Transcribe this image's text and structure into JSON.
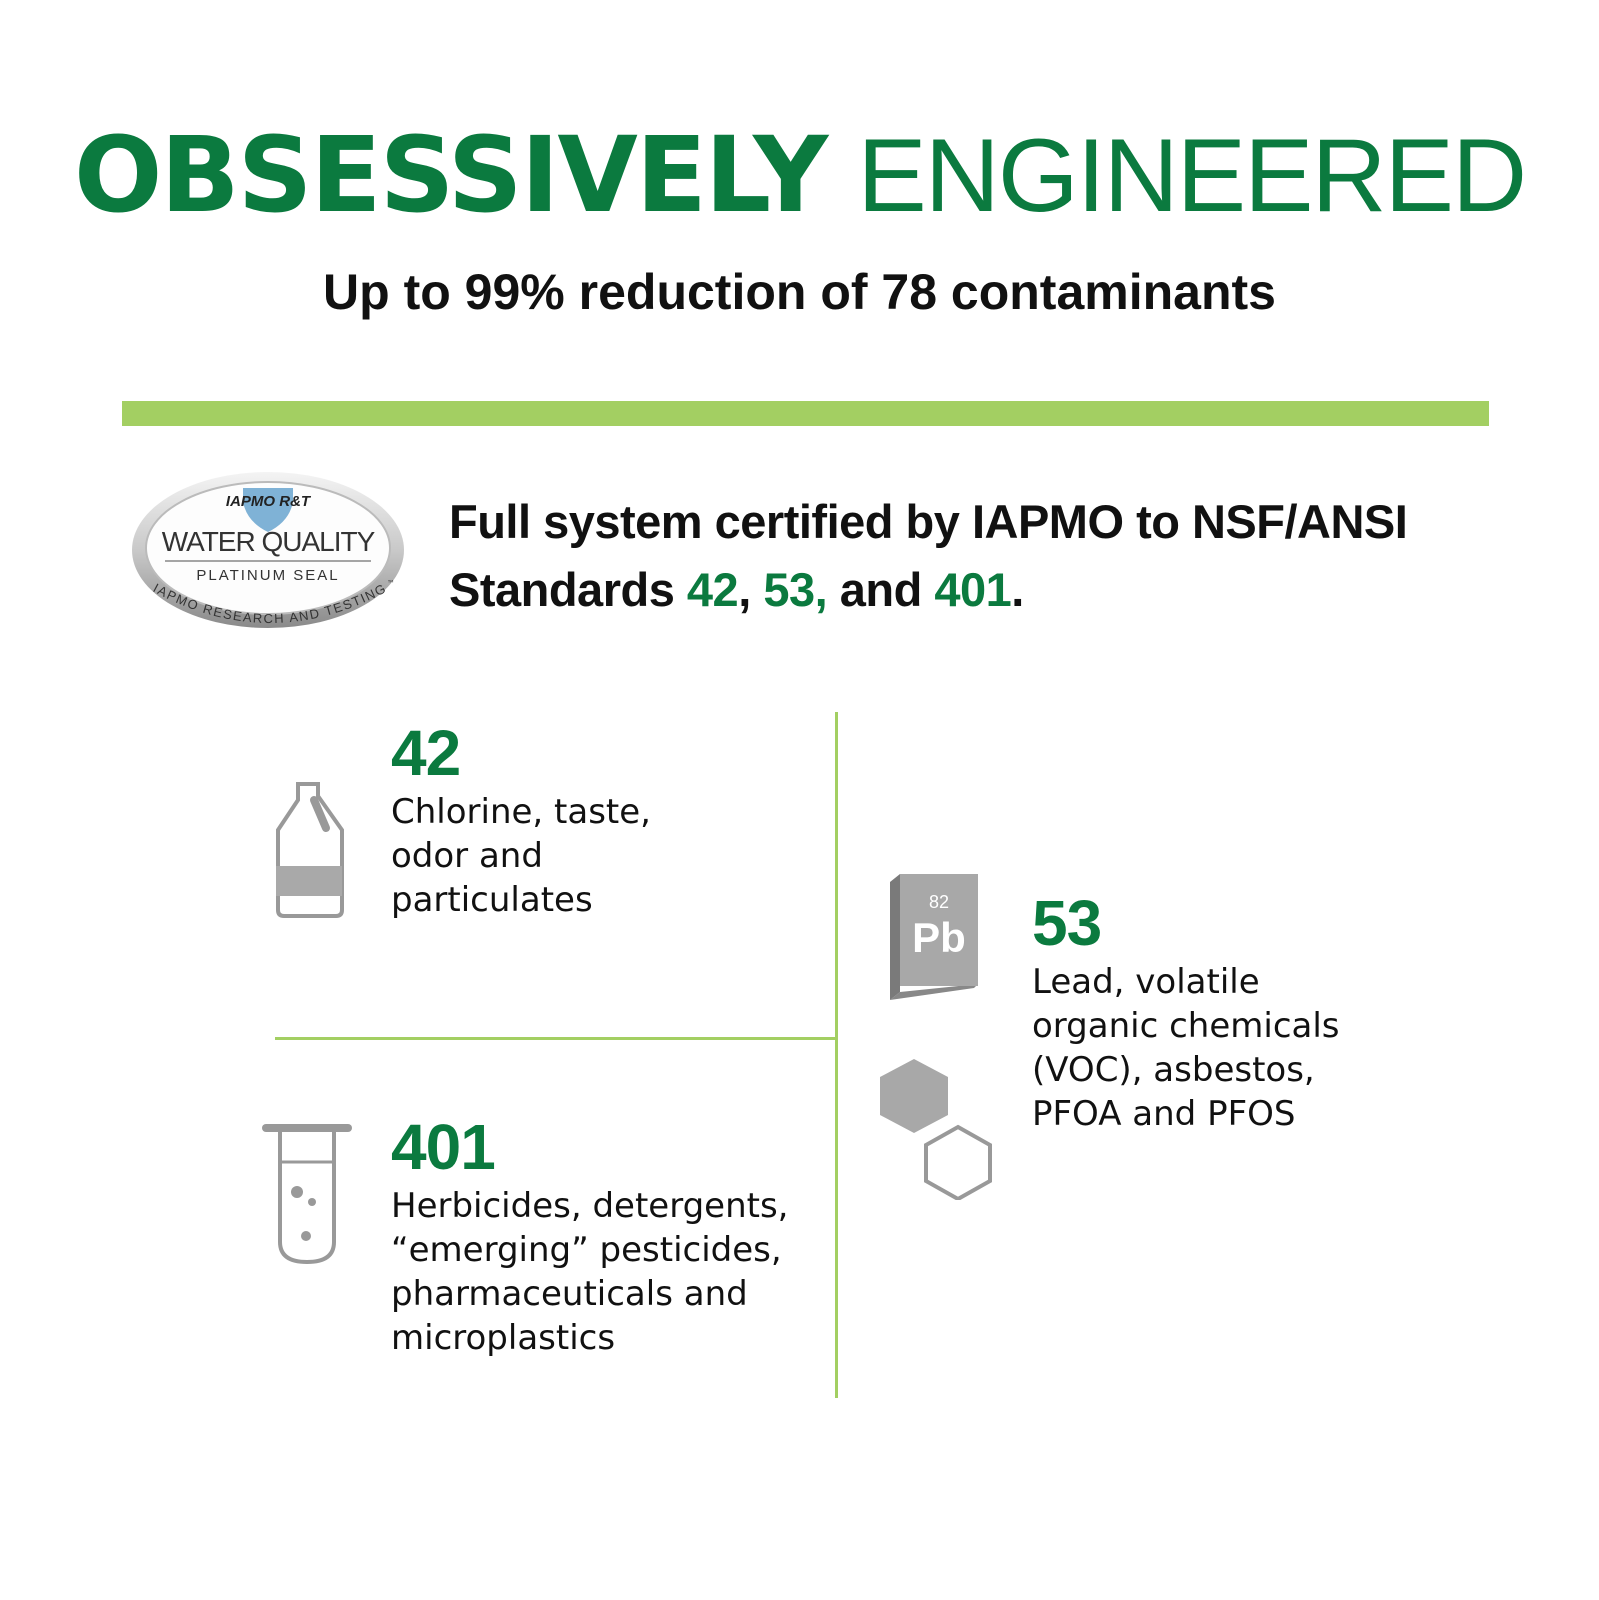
{
  "header": {
    "title_bold": "OBSESSIVELY",
    "title_light": "ENGINEERED",
    "subtitle": "Up to 99% reduction of 78 contaminants"
  },
  "seal": {
    "brand": "IAPMO R&T",
    "title": "WATER QUALITY",
    "subtitle": "PLATINUM SEAL",
    "arc_text": "IAPMO RESEARCH AND TESTING",
    "trademark": "™"
  },
  "certification": {
    "line1": "Full system certified by IAPMO to NSF/ANSI",
    "line2_start": "Standards",
    "std1": "42",
    "sep1": ",",
    "std2": "53,",
    "sep2": "and",
    "std3": "401",
    "end": "."
  },
  "lead_icon": {
    "number": "82",
    "symbol": "Pb"
  },
  "standards": [
    {
      "number": "42",
      "lines": [
        "Chlorine, taste,",
        "odor and",
        "particulates"
      ]
    },
    {
      "number": "53",
      "lines": [
        "Lead, volatile",
        "organic chemicals",
        "(VOC), asbestos,",
        "PFOA and PFOS"
      ]
    },
    {
      "number": "401",
      "lines": [
        "Herbicides, detergents,",
        "“emerging” pesticides,",
        "pharmaceuticals and",
        "microplastics"
      ]
    }
  ]
}
